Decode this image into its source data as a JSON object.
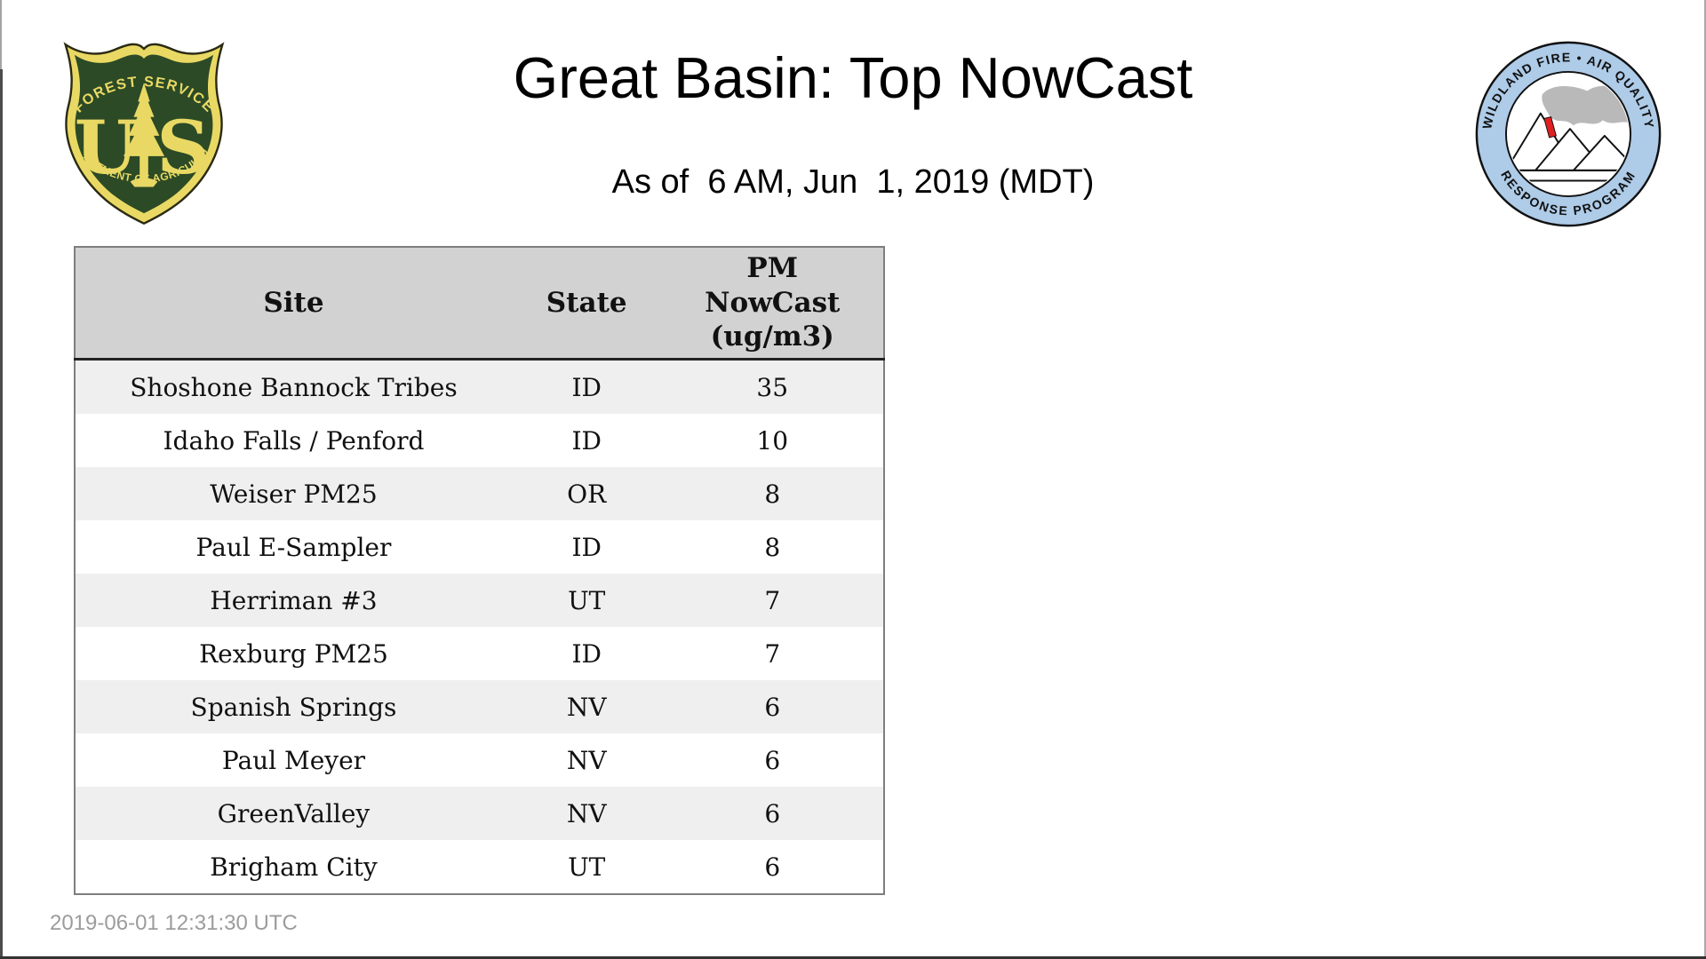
{
  "page": {
    "title": "Great Basin: Top NowCast",
    "subtitle": "As of  6 AM, Jun  1, 2019 (MDT)",
    "footer_timestamp": "2019-06-01 12:31:30 UTC"
  },
  "logos": {
    "forest_service": {
      "top_text": "FOREST SERVICE",
      "letter_u": "U",
      "letter_s": "S",
      "bottom_text": "DEPARTMENT OF AGRICULTURE",
      "green": "#2c4a25",
      "gold": "#e9d964",
      "outline": "#2a2a14"
    },
    "wfaqrp": {
      "top_text": "WILDLAND FIRE • AIR QUALITY",
      "bottom_text": "RESPONSE PROGRAM",
      "ring_color": "#aecbe8",
      "line_color": "#111111",
      "smoke_color": "#b9b9b9",
      "flame_color": "#e02020"
    }
  },
  "table": {
    "header": {
      "site": "Site",
      "state": "State",
      "value": "PM\nNowCast\n(ug/m3)"
    },
    "rows": [
      {
        "site": "Shoshone Bannock Tribes",
        "state": "ID",
        "value": "35"
      },
      {
        "site": "Idaho Falls / Penford",
        "state": "ID",
        "value": "10"
      },
      {
        "site": "Weiser PM25",
        "state": "OR",
        "value": "8"
      },
      {
        "site": "Paul E-Sampler",
        "state": "ID",
        "value": "8"
      },
      {
        "site": "Herriman #3",
        "state": "UT",
        "value": "7"
      },
      {
        "site": "Rexburg PM25",
        "state": "ID",
        "value": "7"
      },
      {
        "site": "Spanish Springs",
        "state": "NV",
        "value": "6"
      },
      {
        "site": "Paul Meyer",
        "state": "NV",
        "value": "6"
      },
      {
        "site": "GreenValley",
        "state": "NV",
        "value": "6"
      },
      {
        "site": "Brigham City",
        "state": "UT",
        "value": "6"
      }
    ],
    "colors": {
      "header_bg": "#d2d2d2",
      "alt_row_bg": "#efefef",
      "outer_border": "#7e7e7e"
    }
  }
}
